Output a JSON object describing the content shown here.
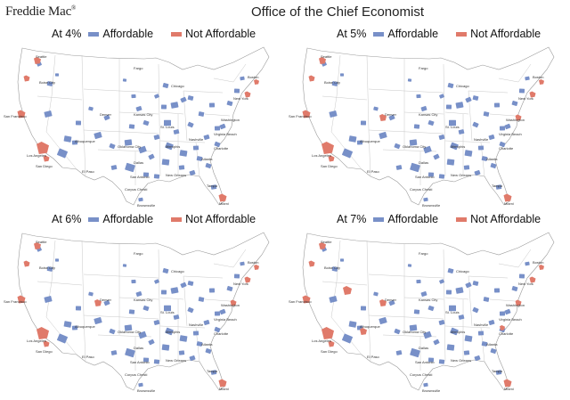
{
  "header": {
    "brand": "Freddie Mac",
    "brand_mark": "®",
    "office": "Office of the Chief Economist"
  },
  "colors": {
    "affordable": "#7890c8",
    "not_affordable": "#e07a6a",
    "land": "#ffffff",
    "borders": "#c8c8c8"
  },
  "legend": {
    "affordable": "Affordable",
    "not_affordable": "Not Affordable"
  },
  "panels": [
    {
      "rate_label": "At 4%",
      "not_affordable_regions": [
        "Seattle",
        "Portland",
        "San Francisco",
        "Los Angeles",
        "San Diego",
        "New York",
        "Boston",
        "Miami"
      ]
    },
    {
      "rate_label": "At 5%",
      "not_affordable_regions": [
        "Seattle",
        "Portland",
        "San Francisco",
        "Los Angeles",
        "San Diego",
        "Denver",
        "New York",
        "Boston",
        "Washington",
        "Miami"
      ]
    },
    {
      "rate_label": "At 6%",
      "not_affordable_regions": [
        "Seattle",
        "Portland",
        "San Francisco",
        "Los Angeles",
        "San Diego",
        "Denver",
        "New York",
        "Boston",
        "Washington",
        "Miami"
      ]
    },
    {
      "rate_label": "At 7%",
      "not_affordable_regions": [
        "Seattle",
        "Portland",
        "Salt Lake City",
        "San Francisco",
        "Los Angeles",
        "San Diego",
        "Denver",
        "Albuquerque",
        "New York",
        "Boston",
        "Washington",
        "Charlotte",
        "Miami"
      ]
    }
  ],
  "map_labels": {
    "seattle": "Seattle",
    "boise": "Boise City",
    "sanfrancisco": "San Francisco",
    "losangeles": "Los Angeles",
    "sandiego": "San Diego",
    "denver": "Denver",
    "albuquerque": "Albuquerque",
    "elpaso": "El Paso",
    "dallas": "Dallas",
    "sanantonio": "San Antonio",
    "corpus": "Corpus Christi",
    "brownsville": "Brownsville",
    "chicago": "Chicago",
    "kansascity": "Kansas City",
    "oklahoma": "Oklahoma City",
    "stlouis": "St. Louis",
    "memphis": "Memphis",
    "nashville": "Nashville",
    "atlanta": "Atlanta",
    "charlotte": "Charlotte",
    "washington": "Washington",
    "newyork": "New York",
    "boston": "Boston",
    "virginiabeach": "Virginia Beach",
    "tampa": "Tampa",
    "miami": "Miami",
    "neworleans": "New Orleans",
    "fargo": "Fargo"
  }
}
